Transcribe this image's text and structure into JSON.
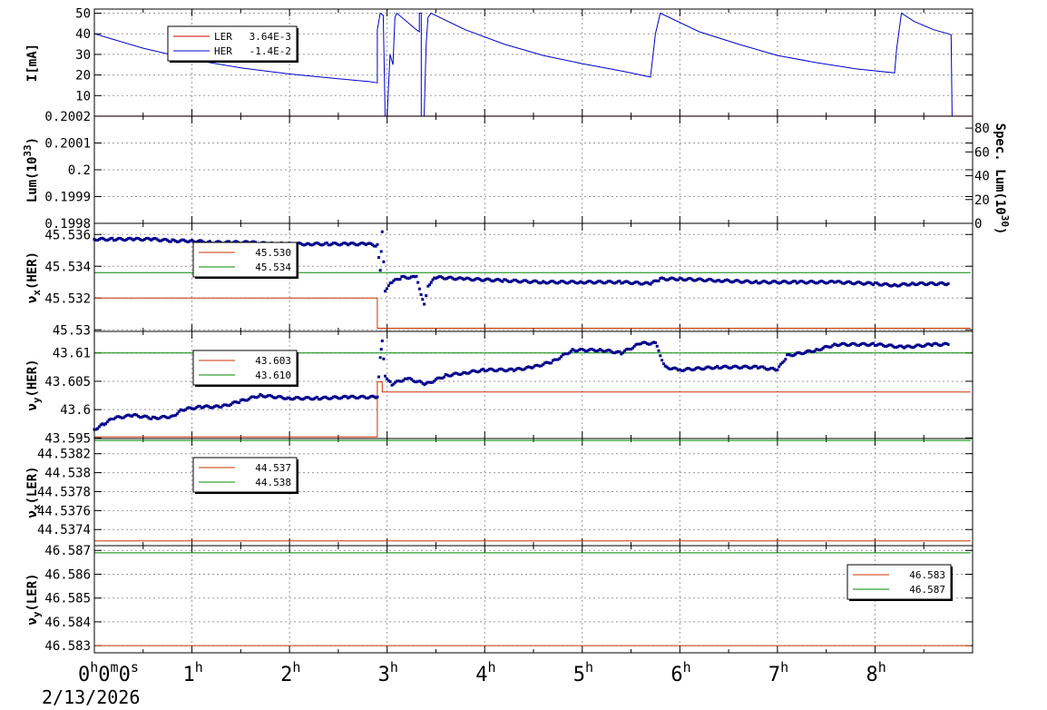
{
  "chart_data": {
    "type": "line",
    "x_axis": {
      "start": "0h0m0s",
      "date": "2/13/2026",
      "range_hours": [
        0,
        9
      ],
      "ticks": [
        {
          "h": 0,
          "main": "0",
          "sup": "h",
          "rest": "0",
          "rest_sup": "m",
          "tail": "0",
          "tail_sup": "s"
        },
        {
          "h": 1,
          "main": "1",
          "sup": "h"
        },
        {
          "h": 2,
          "main": "2",
          "sup": "h"
        },
        {
          "h": 3,
          "main": "3",
          "sup": "h"
        },
        {
          "h": 4,
          "main": "4",
          "sup": "h"
        },
        {
          "h": 5,
          "main": "5",
          "sup": "h"
        },
        {
          "h": 6,
          "main": "6",
          "sup": "h"
        },
        {
          "h": 7,
          "main": "7",
          "sup": "h"
        },
        {
          "h": 8,
          "main": "8",
          "sup": "h"
        }
      ]
    },
    "panels": [
      {
        "id": "current",
        "ylabel": "I[mA]",
        "ylim": [
          0,
          52
        ],
        "yticks": [
          10,
          20,
          30,
          40,
          50
        ],
        "yticklabels": [
          "10",
          "20",
          "30",
          "40",
          "50"
        ],
        "legend": {
          "entries": [
            {
              "label": "LER",
              "value": "3.64E-3",
              "color": "#cc0000"
            },
            {
              "label": "HER",
              "value": "-1.4E-2",
              "color": "#0000cc"
            }
          ]
        },
        "series": [
          {
            "name": "LER",
            "color": "#cc0000",
            "points": [
              [
                0,
                0.05
              ],
              [
                8.98,
                0.05
              ]
            ]
          },
          {
            "name": "HER",
            "color": "#0000cc",
            "points": [
              [
                0,
                40
              ],
              [
                0.5,
                33
              ],
              [
                1.0,
                27.5
              ],
              [
                1.5,
                23.5
              ],
              [
                2.0,
                20.5
              ],
              [
                2.5,
                18.2
              ],
              [
                2.82,
                16.8
              ],
              [
                2.9,
                16.2
              ],
              [
                2.9,
                42
              ],
              [
                2.93,
                50
              ],
              [
                2.96,
                49
              ],
              [
                2.98,
                0
              ],
              [
                3.0,
                0
              ],
              [
                3.03,
                30
              ],
              [
                3.06,
                25
              ],
              [
                3.08,
                48
              ],
              [
                3.1,
                50
              ],
              [
                3.2,
                46
              ],
              [
                3.3,
                42
              ],
              [
                3.33,
                41
              ],
              [
                3.33,
                50
              ],
              [
                3.35,
                50
              ],
              [
                3.35,
                0
              ],
              [
                3.38,
                0
              ],
              [
                3.4,
                35
              ],
              [
                3.42,
                48
              ],
              [
                3.45,
                50
              ],
              [
                3.8,
                42
              ],
              [
                4.2,
                35
              ],
              [
                4.6,
                29.5
              ],
              [
                5.0,
                25.5
              ],
              [
                5.4,
                22
              ],
              [
                5.7,
                19
              ],
              [
                5.7,
                19.5
              ],
              [
                5.75,
                40
              ],
              [
                5.8,
                50
              ],
              [
                6.2,
                41
              ],
              [
                6.6,
                35
              ],
              [
                7.0,
                29.5
              ],
              [
                7.4,
                26
              ],
              [
                7.8,
                23
              ],
              [
                8.2,
                21
              ],
              [
                8.22,
                32
              ],
              [
                8.27,
                50
              ],
              [
                8.4,
                46
              ],
              [
                8.6,
                42
              ],
              [
                8.75,
                40
              ],
              [
                8.78,
                39.5
              ],
              [
                8.79,
                0
              ],
              [
                8.98,
                0
              ]
            ]
          }
        ]
      },
      {
        "id": "luminosity",
        "ylabel": "Lum(10",
        "ylabel_sup": "33",
        "ylabel_tail": ")",
        "ylim": [
          0.1998,
          0.2002
        ],
        "yticks": [
          0.1998,
          0.1999,
          0.2,
          0.2001,
          0.2002
        ],
        "yticklabels": [
          "0.1998",
          "0.1999",
          "0.2",
          "0.2001",
          "0.2002"
        ],
        "y2label": "Spec. Lum(10",
        "y2label_sup": "30",
        "y2label_tail": ")",
        "y2lim": [
          0,
          90
        ],
        "y2ticks": [
          0,
          20,
          40,
          60,
          80
        ],
        "y2ticklabels": [
          "0",
          "20",
          "40",
          "60",
          "80"
        ],
        "series": [
          {
            "name": "Lum",
            "color": "#cc0000",
            "points": [
              [
                0,
                0.2002
              ],
              [
                8.98,
                0.2002
              ]
            ]
          }
        ]
      },
      {
        "id": "nux_her",
        "ylabel": "ν",
        "ylabel_sub": "x",
        "ylabel_tail": "(HER)",
        "ylim": [
          45.5299,
          45.5367
        ],
        "yticks": [
          45.53,
          45.532,
          45.534,
          45.536
        ],
        "yticklabels": [
          "45.53",
          "45.532",
          "45.534",
          "45.536"
        ],
        "legend": {
          "entries": [
            {
              "label": "45.530",
              "color": "#cc3300"
            },
            {
              "label": "45.534",
              "color": "#008800"
            }
          ]
        },
        "reference_lines": [
          {
            "color": "#008800",
            "value": 45.5336,
            "from": 0,
            "to": 8.98
          },
          {
            "color": "#cc3300",
            "steps": [
              [
                0,
                45.532
              ],
              [
                2.9,
                45.532
              ],
              [
                2.9,
                45.5301
              ],
              [
                8.98,
                45.5301
              ]
            ]
          }
        ],
        "series": [
          {
            "name": "nux_her",
            "color": "#00008b",
            "style": "dots",
            "points": [
              [
                0,
                45.5357
              ],
              [
                0.2,
                45.5357
              ],
              [
                0.4,
                45.5357
              ],
              [
                0.6,
                45.5357
              ],
              [
                0.8,
                45.5356
              ],
              [
                1.0,
                45.5356
              ],
              [
                1.2,
                45.5355
              ],
              [
                1.4,
                45.5355
              ],
              [
                1.6,
                45.5355
              ],
              [
                1.8,
                45.5354
              ],
              [
                2.0,
                45.5354
              ],
              [
                2.2,
                45.5354
              ],
              [
                2.4,
                45.5354
              ],
              [
                2.6,
                45.5354
              ],
              [
                2.8,
                45.5354
              ],
              [
                2.9,
                45.5353
              ],
              [
                2.93,
                45.5337
              ],
              [
                2.95,
                45.5362
              ],
              [
                2.98,
                45.5325
              ],
              [
                3.05,
                45.533
              ],
              [
                3.15,
                45.5333
              ],
              [
                3.3,
                45.5333
              ],
              [
                3.38,
                45.5316
              ],
              [
                3.42,
                45.5328
              ],
              [
                3.5,
                45.5333
              ],
              [
                3.8,
                45.5332
              ],
              [
                4.2,
                45.5331
              ],
              [
                4.6,
                45.533
              ],
              [
                5.0,
                45.533
              ],
              [
                5.4,
                45.533
              ],
              [
                5.7,
                45.5329
              ],
              [
                5.8,
                45.5332
              ],
              [
                6.0,
                45.5332
              ],
              [
                6.4,
                45.5331
              ],
              [
                6.8,
                45.533
              ],
              [
                7.2,
                45.533
              ],
              [
                7.6,
                45.533
              ],
              [
                8.0,
                45.5329
              ],
              [
                8.2,
                45.5328
              ],
              [
                8.4,
                45.5329
              ],
              [
                8.75,
                45.5329
              ]
            ]
          }
        ]
      },
      {
        "id": "nuy_her",
        "ylabel": "ν",
        "ylabel_sub": "y",
        "ylabel_tail": "(HER)",
        "ylim": [
          43.5949,
          43.6138
        ],
        "yticks": [
          43.595,
          43.6,
          43.605,
          43.61
        ],
        "yticklabels": [
          "43.595",
          "43.6",
          "43.605",
          "43.61"
        ],
        "legend": {
          "entries": [
            {
              "label": "43.603",
              "color": "#cc3300"
            },
            {
              "label": "43.610",
              "color": "#008800"
            }
          ]
        },
        "reference_lines": [
          {
            "color": "#008800",
            "value": 43.61,
            "from": 0,
            "to": 8.98
          },
          {
            "color": "#cc3300",
            "steps": [
              [
                0,
                43.5952
              ],
              [
                2.9,
                43.5952
              ],
              [
                2.9,
                43.6049
              ],
              [
                2.95,
                43.6049
              ],
              [
                2.95,
                43.6031
              ],
              [
                8.98,
                43.6031
              ]
            ]
          }
        ],
        "series": [
          {
            "name": "nuy_her",
            "color": "#00008b",
            "style": "dots",
            "points": [
              [
                0,
                43.5965
              ],
              [
                0.1,
                43.5975
              ],
              [
                0.2,
                43.5985
              ],
              [
                0.4,
                43.599
              ],
              [
                0.6,
                43.5985
              ],
              [
                0.8,
                43.5988
              ],
              [
                0.9,
                43.6
              ],
              [
                1.1,
                43.6005
              ],
              [
                1.3,
                43.6005
              ],
              [
                1.5,
                43.6015
              ],
              [
                1.7,
                43.6025
              ],
              [
                2.0,
                43.602
              ],
              [
                2.3,
                43.602
              ],
              [
                2.6,
                43.6022
              ],
              [
                2.9,
                43.6022
              ],
              [
                2.93,
                43.609
              ],
              [
                2.95,
                43.612
              ],
              [
                2.98,
                43.606
              ],
              [
                3.05,
                43.6045
              ],
              [
                3.2,
                43.6055
              ],
              [
                3.4,
                43.6045
              ],
              [
                3.6,
                43.606
              ],
              [
                3.8,
                43.6065
              ],
              [
                4.0,
                43.607
              ],
              [
                4.3,
                43.607
              ],
              [
                4.5,
                43.6075
              ],
              [
                4.7,
                43.6085
              ],
              [
                4.9,
                43.6105
              ],
              [
                5.2,
                43.6105
              ],
              [
                5.4,
                43.61
              ],
              [
                5.6,
                43.6117
              ],
              [
                5.75,
                43.6117
              ],
              [
                5.85,
                43.6075
              ],
              [
                6.0,
                43.607
              ],
              [
                6.4,
                43.6075
              ],
              [
                6.8,
                43.6075
              ],
              [
                7.0,
                43.607
              ],
              [
                7.1,
                43.6095
              ],
              [
                7.4,
                43.6105
              ],
              [
                7.6,
                43.6115
              ],
              [
                8.0,
                43.6115
              ],
              [
                8.3,
                43.611
              ],
              [
                8.6,
                43.6115
              ],
              [
                8.75,
                43.6115
              ]
            ]
          }
        ]
      },
      {
        "id": "nux_ler",
        "ylabel": "ν",
        "ylabel_sub": "x",
        "ylabel_tail": "(LER)",
        "ylim": [
          44.53723,
          44.53836
        ],
        "yticks": [
          44.5374,
          44.5376,
          44.5378,
          44.538,
          44.5382
        ],
        "yticklabels": [
          "44.5374",
          "44.5376",
          "44.5378",
          "44.538",
          "44.5382"
        ],
        "legend": {
          "entries": [
            {
              "label": "44.537",
              "color": "#cc3300"
            },
            {
              "label": "44.538",
              "color": "#008800"
            }
          ]
        },
        "reference_lines": [
          {
            "color": "#008800",
            "value": 44.53834,
            "from": 0,
            "to": 8.98
          },
          {
            "color": "#cc3300",
            "value": 44.53728,
            "from": 0,
            "to": 8.98
          }
        ]
      },
      {
        "id": "nuy_ler",
        "ylabel": "ν",
        "ylabel_sub": "y",
        "ylabel_tail": "(LER)",
        "ylim": [
          46.5827,
          46.5872
        ],
        "yticks": [
          46.583,
          46.584,
          46.585,
          46.586,
          46.587
        ],
        "yticklabels": [
          "46.583",
          "46.584",
          "46.585",
          "46.586",
          "46.587"
        ],
        "legend": {
          "placement": "right",
          "entries": [
            {
              "label": "46.583",
              "color": "#cc3300"
            },
            {
              "label": "46.587",
              "color": "#008800"
            }
          ]
        },
        "reference_lines": [
          {
            "color": "#008800",
            "value": 46.5869,
            "from": 0,
            "to": 8.98
          },
          {
            "color": "#cc3300",
            "value": 46.583,
            "from": 0,
            "to": 8.98
          }
        ]
      }
    ]
  }
}
